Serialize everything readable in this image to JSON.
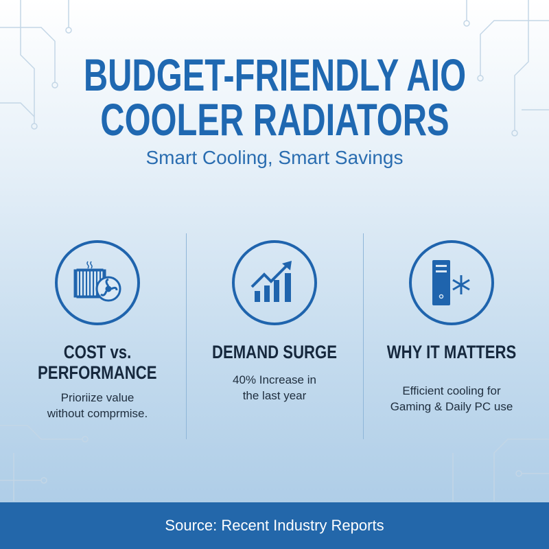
{
  "title": {
    "line1": "BUDGET-FRIENDLY AIO",
    "line2": "COOLER RADIATORS"
  },
  "subtitle": "Smart Cooling, Smart Savings",
  "columns": [
    {
      "icon": "radiator-fan-icon",
      "heading_line1": "COST vs.",
      "heading_line2": "PERFORMANCE",
      "text_line1": "Prioriize value",
      "text_line2": "without comprmise."
    },
    {
      "icon": "growth-chart-icon",
      "heading_line1": "DEMAND SURGE",
      "text_line1": "40% Increase in",
      "text_line2": "the last year"
    },
    {
      "icon": "pc-tower-snowflake-icon",
      "heading_line1": "WHY IT MATTERS",
      "text_line1": "Efficient cooling for",
      "text_line2": "Gaming & Daily PC use"
    }
  ],
  "footer": "Source: Recent Industry Reports",
  "colors": {
    "accent": "#1f68b1",
    "footer": "#2367aa",
    "heading": "#16283d"
  }
}
